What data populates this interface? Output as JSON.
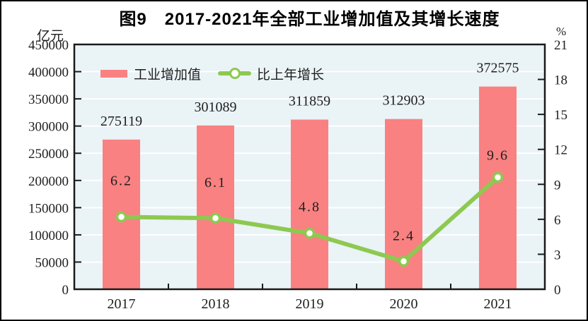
{
  "figure": {
    "title": "图9　2017-2021年全部工业增加值及其增长速度",
    "left_unit": "亿元",
    "right_unit": "%"
  },
  "legend": {
    "bar_label": "工业增加值",
    "line_label": "比上年增长"
  },
  "chart_data": {
    "type": "bar",
    "subtype": "bar+line combo, dual axis",
    "title": "图9　2017-2021年全部工业增加值及其增长速度",
    "categories": [
      "2017",
      "2018",
      "2019",
      "2020",
      "2021"
    ],
    "series": [
      {
        "name": "工业增加值",
        "type": "bar",
        "axis": "left",
        "unit": "亿元",
        "values": [
          275119,
          301089,
          311859,
          312903,
          372575
        ]
      },
      {
        "name": "比上年增长",
        "type": "line",
        "axis": "right",
        "unit": "%",
        "values": [
          6.2,
          6.1,
          4.8,
          2.4,
          9.6
        ]
      }
    ],
    "left_axis": {
      "label": "亿元",
      "min": 0,
      "max": 450000,
      "step": 50000,
      "ticks": [
        "0",
        "50000",
        "100000",
        "150000",
        "200000",
        "250000",
        "300000",
        "350000",
        "400000",
        "450000"
      ]
    },
    "right_axis": {
      "label": "%",
      "min": 0,
      "max": 21,
      "step": 3,
      "ticks": [
        "0",
        "3",
        "6",
        "9",
        "12",
        "15",
        "18",
        "21"
      ]
    },
    "grid": "horizontal white gridlines on light blue plot background",
    "legend_position": "top-left inside plot area",
    "colors": {
      "bar": "#F98181",
      "line": "#8DC950",
      "marker_fill": "#FFFFFF",
      "plot_bg": "#EAF3F6",
      "grid": "#FFFFFF",
      "axis": "#1A1A1A",
      "text": "#1F1F1F"
    }
  }
}
